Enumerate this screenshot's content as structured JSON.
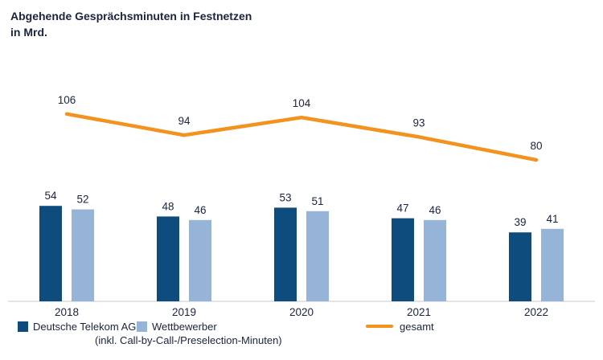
{
  "title": {
    "line1": "Abgehende Gesprächsminuten in Festnetzen",
    "line2": "in Mrd."
  },
  "colors": {
    "telekom_bar": "#0e4c7d",
    "competitor_bar": "#96b4d8",
    "total_line": "#f3921e",
    "axis_line": "#c9c9c9",
    "label_text": "#1b2340"
  },
  "chart_data": {
    "type": "bar",
    "title": "Abgehende Gesprächsminuten in Festnetzen in Mrd.",
    "categories": [
      "2018",
      "2019",
      "2020",
      "2021",
      "2022"
    ],
    "series": [
      {
        "name": "Deutsche Telekom AG",
        "type": "bar",
        "color": "#0e4c7d",
        "values": [
          54,
          48,
          53,
          47,
          39
        ]
      },
      {
        "name": "Wettbewerber",
        "type": "bar",
        "color": "#96b4d8",
        "values": [
          52,
          46,
          51,
          46,
          41
        ]
      },
      {
        "name": "gesamt",
        "type": "line",
        "color": "#f3921e",
        "values": [
          106,
          94,
          104,
          93,
          80
        ]
      }
    ],
    "xlabel": "",
    "ylabel": "",
    "ylim": [
      0,
      120
    ],
    "grid": false,
    "data_labels": true,
    "legend_position": "bottom"
  },
  "legend": {
    "telekom_label": "Deutsche Telekom AG",
    "competitor_label": "Wettbewerber",
    "competitor_note": "(inkl. Call-by-Call-/Preselection-Minuten)",
    "total_label": "gesamt"
  }
}
